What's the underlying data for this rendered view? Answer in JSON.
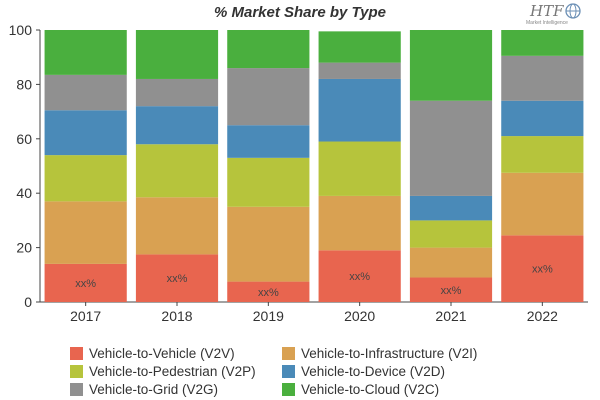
{
  "chart_data": {
    "type": "bar",
    "stacked": true,
    "title": "% Market Share by Type",
    "categories": [
      "2017",
      "2018",
      "2019",
      "2020",
      "2021",
      "2022"
    ],
    "ylim": [
      0,
      100
    ],
    "yticks": [
      "0",
      "20",
      "40",
      "60",
      "80",
      "100"
    ],
    "grid": false,
    "legend_position": "bottom",
    "data_label": "xx%",
    "series": [
      {
        "name": "Vehicle-to-Vehicle (V2V)",
        "color": "#e8654f",
        "values": [
          14,
          17.5,
          7.5,
          19,
          9,
          24.5
        ]
      },
      {
        "name": "Vehicle-to-Infrastructure (V2I)",
        "color": "#d9a152",
        "values": [
          23,
          21,
          27.5,
          20,
          11,
          23
        ]
      },
      {
        "name": "Vehicle-to-Pedestrian (V2P)",
        "color": "#b6c43c",
        "values": [
          17,
          19.5,
          18,
          20,
          10,
          13.5
        ]
      },
      {
        "name": "Vehicle-to-Device (V2D)",
        "color": "#4a8ab8",
        "values": [
          16.5,
          14,
          12,
          23,
          9,
          13
        ]
      },
      {
        "name": "Vehicle-to-Grid (V2G)",
        "color": "#909090",
        "values": [
          13,
          10,
          21,
          6,
          35,
          16.5
        ]
      },
      {
        "name": "Vehicle-to-Cloud (V2C)",
        "color": "#4aaf3e",
        "values": [
          16.5,
          18,
          14,
          11.5,
          26,
          9.5
        ]
      }
    ]
  },
  "logo": {
    "text": "HTF",
    "subtext": "Market Intelligence",
    "icon": "globe-icon"
  }
}
